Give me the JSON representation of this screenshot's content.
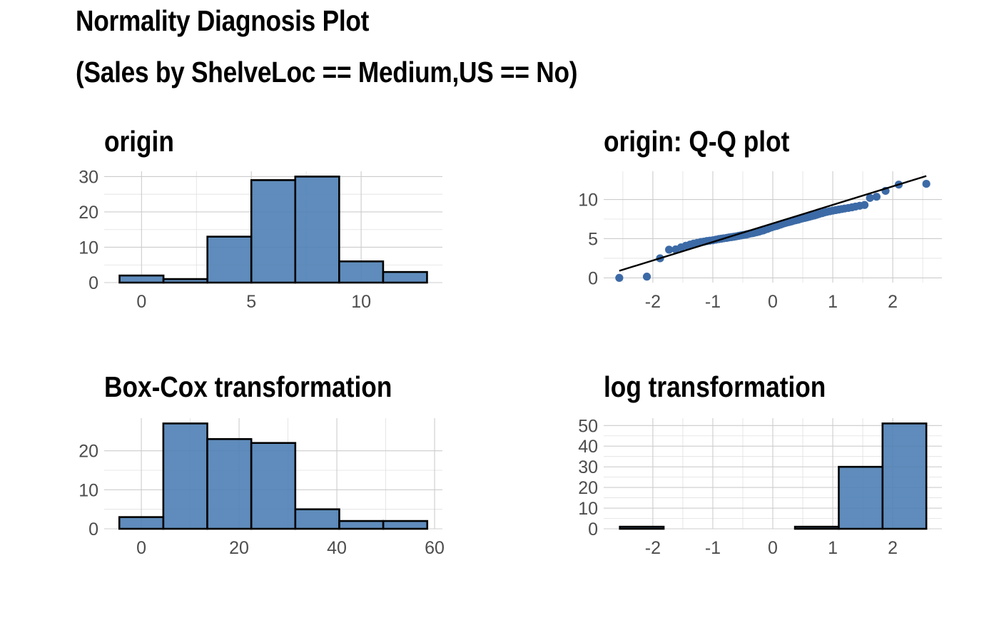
{
  "title": {
    "line1": "Normality Diagnosis Plot",
    "line2": "(Sales by ShelveLoc == Medium,US == No)"
  },
  "colors": {
    "bar_fill": "#4e7fb5",
    "point": "#3c6aa6",
    "line": "#000000",
    "grid": "#cccccc",
    "tick_text": "#4d4d4d"
  },
  "chart_data": [
    {
      "id": "origin",
      "type": "bar",
      "title": "origin",
      "xlabel": "",
      "ylabel": "",
      "bins": [
        {
          "x0": -1.0,
          "x1": 1.0,
          "count": 2
        },
        {
          "x0": 1.0,
          "x1": 3.0,
          "count": 1
        },
        {
          "x0": 3.0,
          "x1": 5.0,
          "count": 13
        },
        {
          "x0": 5.0,
          "x1": 7.0,
          "count": 29
        },
        {
          "x0": 7.0,
          "x1": 9.0,
          "count": 30
        },
        {
          "x0": 9.0,
          "x1": 11.0,
          "count": 6
        },
        {
          "x0": 11.0,
          "x1": 13.0,
          "count": 3
        }
      ],
      "xlim": [
        -1.7,
        13.7
      ],
      "ylim": [
        0,
        31.5
      ],
      "xticks": [
        0,
        5,
        10
      ],
      "yticks": [
        0,
        10,
        20,
        30
      ],
      "grid": true
    },
    {
      "id": "qq",
      "type": "scatter",
      "title": "origin: Q-Q plot",
      "xlabel": "",
      "ylabel": "",
      "points": [
        [
          -2.56,
          0.0
        ],
        [
          -2.1,
          0.16
        ],
        [
          -1.88,
          2.5
        ],
        [
          -1.73,
          3.6
        ],
        [
          -1.62,
          3.63
        ],
        [
          -1.53,
          3.9
        ],
        [
          -1.45,
          4.1
        ],
        [
          -1.38,
          4.25
        ],
        [
          -1.32,
          4.38
        ],
        [
          -1.26,
          4.47
        ],
        [
          -1.2,
          4.58
        ],
        [
          -1.15,
          4.62
        ],
        [
          -1.1,
          4.7
        ],
        [
          -1.05,
          4.75
        ],
        [
          -1.0,
          4.8
        ],
        [
          -0.95,
          4.88
        ],
        [
          -0.9,
          4.95
        ],
        [
          -0.86,
          5.0
        ],
        [
          -0.82,
          5.05
        ],
        [
          -0.77,
          5.1
        ],
        [
          -0.73,
          5.16
        ],
        [
          -0.69,
          5.2
        ],
        [
          -0.65,
          5.25
        ],
        [
          -0.61,
          5.3
        ],
        [
          -0.57,
          5.36
        ],
        [
          -0.53,
          5.42
        ],
        [
          -0.49,
          5.47
        ],
        [
          -0.45,
          5.52
        ],
        [
          -0.42,
          5.58
        ],
        [
          -0.38,
          5.65
        ],
        [
          -0.34,
          5.7
        ],
        [
          -0.31,
          5.76
        ],
        [
          -0.27,
          5.83
        ],
        [
          -0.23,
          5.9
        ],
        [
          -0.2,
          5.98
        ],
        [
          -0.16,
          6.05
        ],
        [
          -0.13,
          6.15
        ],
        [
          -0.09,
          6.25
        ],
        [
          -0.06,
          6.35
        ],
        [
          -0.02,
          6.45
        ],
        [
          0.02,
          6.55
        ],
        [
          0.06,
          6.62
        ],
        [
          0.09,
          6.7
        ],
        [
          0.13,
          6.8
        ],
        [
          0.16,
          6.9
        ],
        [
          0.2,
          6.98
        ],
        [
          0.23,
          7.05
        ],
        [
          0.27,
          7.12
        ],
        [
          0.31,
          7.2
        ],
        [
          0.34,
          7.28
        ],
        [
          0.38,
          7.35
        ],
        [
          0.42,
          7.42
        ],
        [
          0.45,
          7.5
        ],
        [
          0.49,
          7.58
        ],
        [
          0.53,
          7.65
        ],
        [
          0.57,
          7.72
        ],
        [
          0.61,
          7.8
        ],
        [
          0.65,
          7.88
        ],
        [
          0.69,
          7.95
        ],
        [
          0.73,
          8.05
        ],
        [
          0.77,
          8.15
        ],
        [
          0.82,
          8.25
        ],
        [
          0.86,
          8.35
        ],
        [
          0.9,
          8.42
        ],
        [
          0.95,
          8.5
        ],
        [
          1.0,
          8.58
        ],
        [
          1.05,
          8.65
        ],
        [
          1.1,
          8.72
        ],
        [
          1.15,
          8.78
        ],
        [
          1.2,
          8.85
        ],
        [
          1.26,
          8.92
        ],
        [
          1.32,
          9.0
        ],
        [
          1.38,
          9.1
        ],
        [
          1.45,
          9.2
        ],
        [
          1.53,
          9.3
        ],
        [
          1.62,
          10.2
        ],
        [
          1.73,
          10.35
        ],
        [
          1.88,
          11.1
        ],
        [
          2.1,
          11.9
        ],
        [
          2.56,
          12.0
        ]
      ],
      "line": {
        "x0": -2.56,
        "y0": 0.9,
        "x1": 2.56,
        "y1": 13.0
      },
      "xlim": [
        -2.82,
        2.82
      ],
      "ylim": [
        -0.6,
        13.6
      ],
      "xticks": [
        -2,
        -1,
        0,
        1,
        2
      ],
      "yticks": [
        0,
        5,
        10
      ],
      "grid": true
    },
    {
      "id": "boxcox",
      "type": "bar",
      "title": "Box-Cox transformation",
      "xlabel": "",
      "ylabel": "",
      "bins": [
        {
          "x0": -4.5,
          "x1": 4.5,
          "count": 3
        },
        {
          "x0": 4.5,
          "x1": 13.5,
          "count": 27
        },
        {
          "x0": 13.5,
          "x1": 22.5,
          "count": 23
        },
        {
          "x0": 22.5,
          "x1": 31.5,
          "count": 22
        },
        {
          "x0": 31.5,
          "x1": 40.5,
          "count": 5
        },
        {
          "x0": 40.5,
          "x1": 49.5,
          "count": 2
        },
        {
          "x0": 49.5,
          "x1": 58.5,
          "count": 2
        }
      ],
      "xlim": [
        -7.6,
        61.6
      ],
      "ylim": [
        0,
        28.35
      ],
      "xticks": [
        0,
        20,
        40,
        60
      ],
      "yticks": [
        0,
        10,
        20
      ],
      "grid": true
    },
    {
      "id": "log",
      "type": "bar",
      "title": "log transformation",
      "xlabel": "",
      "ylabel": "",
      "bins": [
        {
          "x0": -2.55,
          "x1": -1.82,
          "count": 1
        },
        {
          "x0": -1.82,
          "x1": -1.09,
          "count": 0
        },
        {
          "x0": -1.09,
          "x1": -0.36,
          "count": 0
        },
        {
          "x0": -0.36,
          "x1": 0.37,
          "count": 0
        },
        {
          "x0": 0.37,
          "x1": 1.1,
          "count": 1
        },
        {
          "x0": 1.1,
          "x1": 1.83,
          "count": 30
        },
        {
          "x0": 1.83,
          "x1": 2.56,
          "count": 51
        }
      ],
      "xlim": [
        -2.82,
        2.82
      ],
      "ylim": [
        0,
        53.55
      ],
      "xticks": [
        -2,
        -1,
        0,
        1,
        2
      ],
      "yticks": [
        0,
        10,
        20,
        30,
        40,
        50
      ],
      "grid": true
    }
  ]
}
